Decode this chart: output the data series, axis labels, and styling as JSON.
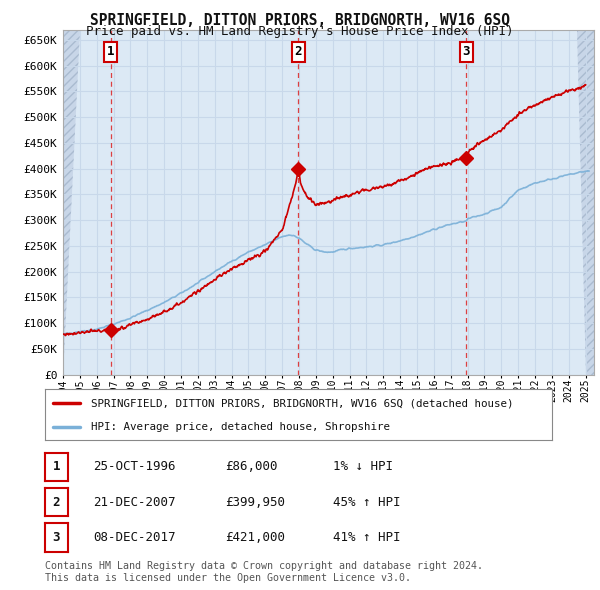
{
  "title": "SPRINGFIELD, DITTON PRIORS, BRIDGNORTH, WV16 6SQ",
  "subtitle": "Price paid vs. HM Land Registry's House Price Index (HPI)",
  "background_color": "#ffffff",
  "plot_bg_color": "#dce9f5",
  "grid_color": "#c8d8ea",
  "sale_color": "#cc0000",
  "hpi_color": "#7ab0d8",
  "ylim": [
    0,
    670000
  ],
  "yticks": [
    0,
    50000,
    100000,
    150000,
    200000,
    250000,
    300000,
    350000,
    400000,
    450000,
    500000,
    550000,
    600000,
    650000
  ],
  "ytick_labels": [
    "£0",
    "£50K",
    "£100K",
    "£150K",
    "£200K",
    "£250K",
    "£300K",
    "£350K",
    "£400K",
    "£450K",
    "£500K",
    "£550K",
    "£600K",
    "£650K"
  ],
  "legend_sale": "SPRINGFIELD, DITTON PRIORS, BRIDGNORTH, WV16 6SQ (detached house)",
  "legend_hpi": "HPI: Average price, detached house, Shropshire",
  "sales": [
    {
      "date_num": 1996.82,
      "price": 86000,
      "label": "1"
    },
    {
      "date_num": 2007.97,
      "price": 399950,
      "label": "2"
    },
    {
      "date_num": 2017.93,
      "price": 421000,
      "label": "3"
    }
  ],
  "table_rows": [
    {
      "num": "1",
      "date": "25-OCT-1996",
      "price": "£86,000",
      "change": "1% ↓ HPI"
    },
    {
      "num": "2",
      "date": "21-DEC-2007",
      "price": "£399,950",
      "change": "45% ↑ HPI"
    },
    {
      "num": "3",
      "date": "08-DEC-2017",
      "price": "£421,000",
      "change": "41% ↑ HPI"
    }
  ],
  "footer": "Contains HM Land Registry data © Crown copyright and database right 2024.\nThis data is licensed under the Open Government Licence v3.0."
}
